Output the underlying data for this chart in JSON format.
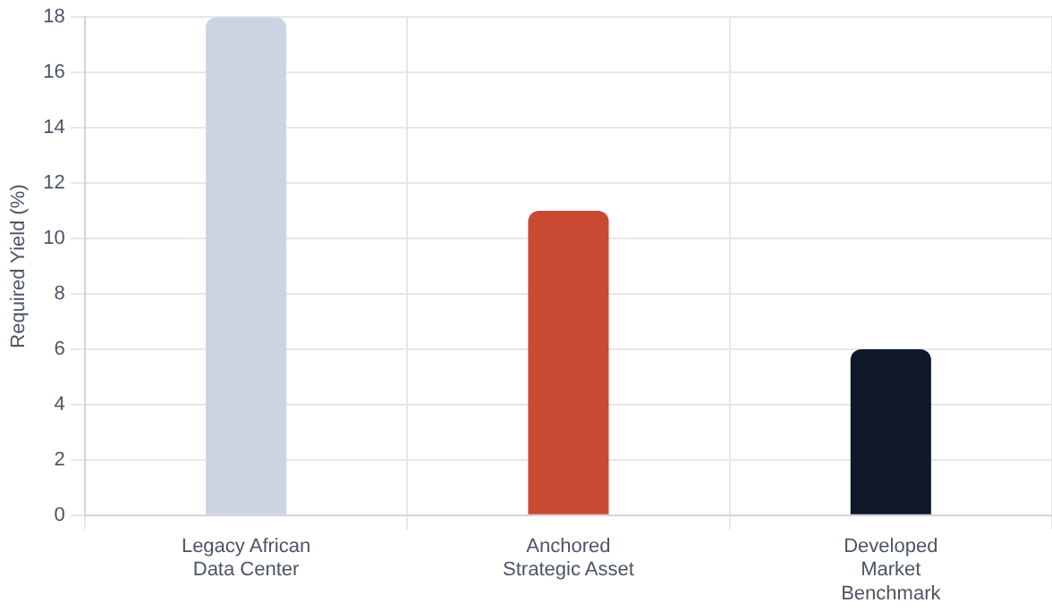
{
  "chart_data": {
    "type": "bar",
    "ylabel": "Required Yield (%)",
    "categories": [
      "Legacy African\nData Center",
      "Anchored\nStrategic Asset",
      "Developed\nMarket\nBenchmark"
    ],
    "values": [
      18,
      11,
      6
    ],
    "colors": [
      "#cbd5e1",
      "#c84a33",
      "#0f172a"
    ],
    "ylim": [
      0,
      18
    ],
    "yticks": [
      0,
      2,
      4,
      6,
      8,
      10,
      12,
      14,
      16,
      18
    ],
    "grid": true
  }
}
